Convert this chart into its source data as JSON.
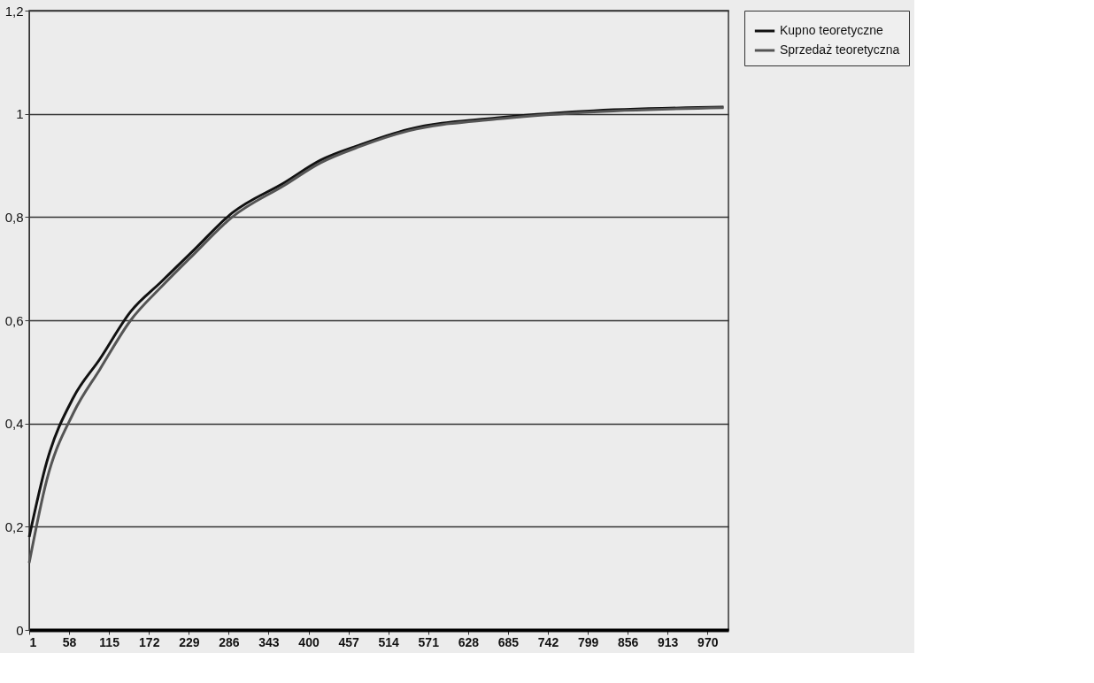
{
  "chart_data": {
    "type": "line",
    "x": [
      1,
      26,
      64,
      102,
      146,
      190,
      234,
      291,
      366,
      417,
      474,
      543,
      669,
      795,
      993
    ],
    "series": [
      {
        "name": "Kupno teoretyczne",
        "color": "#111111",
        "values": [
          0.18,
          0.325,
          0.45,
          0.525,
          0.617,
          0.675,
          0.733,
          0.808,
          0.867,
          0.91,
          0.94,
          0.97,
          0.992,
          1.005,
          1.013
        ]
      },
      {
        "name": "Sprzedaż teoretyczna",
        "color": "#555555",
        "values": [
          0.13,
          0.29,
          0.42,
          0.505,
          0.6,
          0.665,
          0.725,
          0.8,
          0.862,
          0.905,
          0.937,
          0.967,
          0.99,
          1.003,
          1.012
        ]
      }
    ],
    "xlim": [
      1,
      1000
    ],
    "xticks": [
      1,
      58,
      115,
      172,
      229,
      286,
      343,
      400,
      457,
      514,
      571,
      628,
      685,
      742,
      799,
      856,
      913,
      970
    ],
    "ylim": [
      0,
      1.2
    ],
    "yticks": [
      0,
      {
        "value": 0.2,
        "label": "0,2"
      },
      {
        "value": 0.4,
        "label": "0,4"
      },
      {
        "value": 0.6,
        "label": "0,6"
      },
      {
        "value": 0.8,
        "label": "0,8"
      },
      1,
      {
        "value": 1.2,
        "label": "1,2"
      }
    ],
    "grid": "y",
    "legend": "right",
    "marker": "none",
    "line_style": "solid"
  }
}
